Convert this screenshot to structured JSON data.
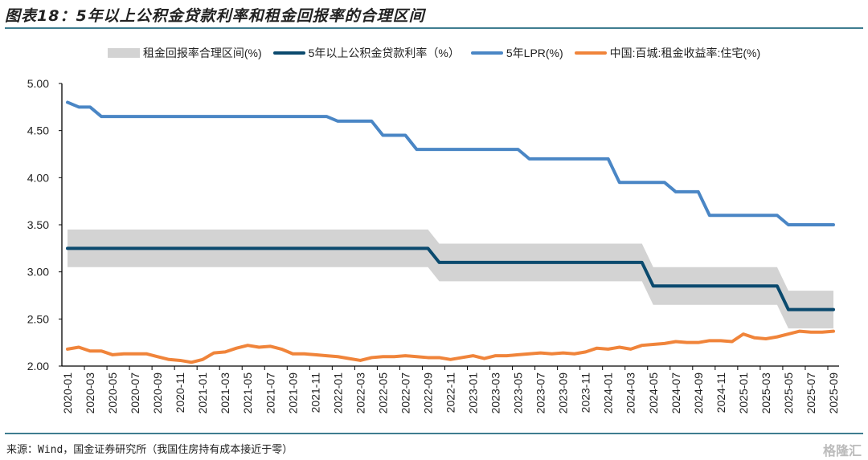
{
  "header": {
    "title": "图表18：5年以上公积金贷款利率和租金回报率的合理区间"
  },
  "footer": {
    "source": "来源：Wind，国金证券研究所（我国住房持有成本接近于零）",
    "watermark": "格隆汇"
  },
  "chart_data": {
    "type": "line",
    "title": "",
    "xlabel": "",
    "ylabel": "",
    "ylim": [
      2.0,
      5.0
    ],
    "yticks": [
      "2.00",
      "2.50",
      "3.00",
      "3.50",
      "4.00",
      "4.50",
      "5.00"
    ],
    "grid": false,
    "legend_position": "top",
    "categories": [
      "2020-01",
      "2020-02",
      "2020-03",
      "2020-04",
      "2020-05",
      "2020-06",
      "2020-07",
      "2020-08",
      "2020-09",
      "2020-10",
      "2020-11",
      "2020-12",
      "2021-01",
      "2021-02",
      "2021-03",
      "2021-04",
      "2021-05",
      "2021-06",
      "2021-07",
      "2021-08",
      "2021-09",
      "2021-10",
      "2021-11",
      "2021-12",
      "2022-01",
      "2022-02",
      "2022-03",
      "2022-04",
      "2022-05",
      "2022-06",
      "2022-07",
      "2022-08",
      "2022-09",
      "2022-10",
      "2022-11",
      "2022-12",
      "2023-01",
      "2023-02",
      "2023-03",
      "2023-04",
      "2023-05",
      "2023-06",
      "2023-07",
      "2023-08",
      "2023-09",
      "2023-10",
      "2023-11",
      "2023-12",
      "2024-01",
      "2024-02",
      "2024-03",
      "2024-04",
      "2024-05",
      "2024-06",
      "2024-07",
      "2024-08",
      "2024-09",
      "2024-10",
      "2024-11",
      "2024-12",
      "2025-01",
      "2025-02",
      "2025-03",
      "2025-04",
      "2025-05",
      "2025-06",
      "2025-07",
      "2025-08",
      "2025-09"
    ],
    "band": {
      "name": "租金回报率合理区间(%)",
      "color": "#d3d3d3",
      "low": [
        3.05,
        3.05,
        3.05,
        3.05,
        3.05,
        3.05,
        3.05,
        3.05,
        3.05,
        3.05,
        3.05,
        3.05,
        3.05,
        3.05,
        3.05,
        3.05,
        3.05,
        3.05,
        3.05,
        3.05,
        3.05,
        3.05,
        3.05,
        3.05,
        3.05,
        3.05,
        3.05,
        3.05,
        3.05,
        3.05,
        3.05,
        3.05,
        3.05,
        2.9,
        2.9,
        2.9,
        2.9,
        2.9,
        2.9,
        2.9,
        2.9,
        2.9,
        2.9,
        2.9,
        2.9,
        2.9,
        2.9,
        2.9,
        2.9,
        2.9,
        2.9,
        2.9,
        2.65,
        2.65,
        2.65,
        2.65,
        2.65,
        2.65,
        2.65,
        2.65,
        2.65,
        2.65,
        2.65,
        2.65,
        2.4,
        2.4,
        2.4,
        2.4,
        2.4
      ],
      "high": [
        3.45,
        3.45,
        3.45,
        3.45,
        3.45,
        3.45,
        3.45,
        3.45,
        3.45,
        3.45,
        3.45,
        3.45,
        3.45,
        3.45,
        3.45,
        3.45,
        3.45,
        3.45,
        3.45,
        3.45,
        3.45,
        3.45,
        3.45,
        3.45,
        3.45,
        3.45,
        3.45,
        3.45,
        3.45,
        3.45,
        3.45,
        3.45,
        3.45,
        3.3,
        3.3,
        3.3,
        3.3,
        3.3,
        3.3,
        3.3,
        3.3,
        3.3,
        3.3,
        3.3,
        3.3,
        3.3,
        3.3,
        3.3,
        3.3,
        3.3,
        3.3,
        3.3,
        3.05,
        3.05,
        3.05,
        3.05,
        3.05,
        3.05,
        3.05,
        3.05,
        3.05,
        3.05,
        3.05,
        3.05,
        2.8,
        2.8,
        2.8,
        2.8,
        2.8
      ]
    },
    "series": [
      {
        "name": "5年以上公积金贷款利率（%）",
        "color": "#0b4a6e",
        "values": [
          3.25,
          3.25,
          3.25,
          3.25,
          3.25,
          3.25,
          3.25,
          3.25,
          3.25,
          3.25,
          3.25,
          3.25,
          3.25,
          3.25,
          3.25,
          3.25,
          3.25,
          3.25,
          3.25,
          3.25,
          3.25,
          3.25,
          3.25,
          3.25,
          3.25,
          3.25,
          3.25,
          3.25,
          3.25,
          3.25,
          3.25,
          3.25,
          3.25,
          3.1,
          3.1,
          3.1,
          3.1,
          3.1,
          3.1,
          3.1,
          3.1,
          3.1,
          3.1,
          3.1,
          3.1,
          3.1,
          3.1,
          3.1,
          3.1,
          3.1,
          3.1,
          3.1,
          2.85,
          2.85,
          2.85,
          2.85,
          2.85,
          2.85,
          2.85,
          2.85,
          2.85,
          2.85,
          2.85,
          2.85,
          2.6,
          2.6,
          2.6,
          2.6,
          2.6
        ]
      },
      {
        "name": "5年LPR(%)",
        "color": "#4a86c5",
        "values": [
          4.8,
          4.75,
          4.75,
          4.65,
          4.65,
          4.65,
          4.65,
          4.65,
          4.65,
          4.65,
          4.65,
          4.65,
          4.65,
          4.65,
          4.65,
          4.65,
          4.65,
          4.65,
          4.65,
          4.65,
          4.65,
          4.65,
          4.65,
          4.65,
          4.6,
          4.6,
          4.6,
          4.6,
          4.45,
          4.45,
          4.45,
          4.3,
          4.3,
          4.3,
          4.3,
          4.3,
          4.3,
          4.3,
          4.3,
          4.3,
          4.3,
          4.2,
          4.2,
          4.2,
          4.2,
          4.2,
          4.2,
          4.2,
          4.2,
          3.95,
          3.95,
          3.95,
          3.95,
          3.95,
          3.85,
          3.85,
          3.85,
          3.6,
          3.6,
          3.6,
          3.6,
          3.6,
          3.6,
          3.6,
          3.5,
          3.5,
          3.5,
          3.5,
          3.5
        ]
      },
      {
        "name": "中国:百城:租金收益率:住宅(%)",
        "color": "#f0843a",
        "values": [
          2.18,
          2.2,
          2.16,
          2.16,
          2.12,
          2.13,
          2.13,
          2.13,
          2.1,
          2.07,
          2.06,
          2.04,
          2.07,
          2.14,
          2.15,
          2.19,
          2.22,
          2.2,
          2.21,
          2.18,
          2.13,
          2.13,
          2.12,
          2.11,
          2.1,
          2.08,
          2.06,
          2.09,
          2.1,
          2.1,
          2.11,
          2.1,
          2.09,
          2.09,
          2.07,
          2.09,
          2.11,
          2.08,
          2.11,
          2.11,
          2.12,
          2.13,
          2.14,
          2.13,
          2.14,
          2.13,
          2.15,
          2.19,
          2.18,
          2.2,
          2.18,
          2.22,
          2.23,
          2.24,
          2.26,
          2.25,
          2.25,
          2.27,
          2.27,
          2.26,
          2.34,
          2.3,
          2.29,
          2.31,
          2.34,
          2.37,
          2.36,
          2.36,
          2.37
        ]
      }
    ]
  }
}
